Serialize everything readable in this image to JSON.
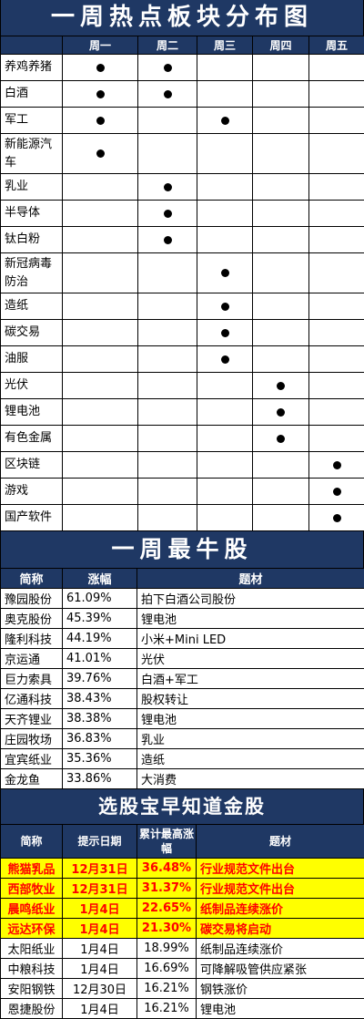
{
  "section1": {
    "title": "一周热点板块分布图",
    "days": [
      "周一",
      "周二",
      "周三",
      "周四",
      "周五"
    ],
    "rows": [
      {
        "sector": "养鸡养猪",
        "marks": [
          true,
          true,
          false,
          false,
          false
        ]
      },
      {
        "sector": "白酒",
        "marks": [
          true,
          true,
          false,
          false,
          false
        ]
      },
      {
        "sector": "军工",
        "marks": [
          true,
          false,
          true,
          false,
          false
        ]
      },
      {
        "sector": "新能源汽车",
        "marks": [
          true,
          false,
          false,
          false,
          false
        ]
      },
      {
        "sector": "乳业",
        "marks": [
          false,
          true,
          false,
          false,
          false
        ]
      },
      {
        "sector": "半导体",
        "marks": [
          false,
          true,
          false,
          false,
          false
        ]
      },
      {
        "sector": "钛白粉",
        "marks": [
          false,
          true,
          false,
          false,
          false
        ]
      },
      {
        "sector": "新冠病毒防治",
        "marks": [
          false,
          false,
          true,
          false,
          false
        ]
      },
      {
        "sector": "造纸",
        "marks": [
          false,
          false,
          true,
          false,
          false
        ]
      },
      {
        "sector": "碳交易",
        "marks": [
          false,
          false,
          true,
          false,
          false
        ]
      },
      {
        "sector": "油服",
        "marks": [
          false,
          false,
          true,
          false,
          false
        ]
      },
      {
        "sector": "光伏",
        "marks": [
          false,
          false,
          false,
          true,
          false
        ]
      },
      {
        "sector": "锂电池",
        "marks": [
          false,
          false,
          false,
          true,
          false
        ]
      },
      {
        "sector": "有色金属",
        "marks": [
          false,
          false,
          false,
          true,
          false
        ]
      },
      {
        "sector": "区块链",
        "marks": [
          false,
          false,
          false,
          false,
          true
        ]
      },
      {
        "sector": "游戏",
        "marks": [
          false,
          false,
          false,
          false,
          true
        ]
      },
      {
        "sector": "国产软件",
        "marks": [
          false,
          false,
          false,
          false,
          true
        ]
      }
    ]
  },
  "section2": {
    "title": "一周最牛股",
    "headers": [
      "简称",
      "涨幅",
      "题材"
    ],
    "rows": [
      [
        "豫园股份",
        "61.09%",
        "拍下白酒公司股份"
      ],
      [
        "奥克股份",
        "45.39%",
        "锂电池"
      ],
      [
        "隆利科技",
        "44.19%",
        "小米+Mini LED"
      ],
      [
        "京运通",
        "41.01%",
        "光伏"
      ],
      [
        "巨力索具",
        "39.76%",
        "白酒+军工"
      ],
      [
        "亿通科技",
        "38.43%",
        "股权转让"
      ],
      [
        "天齐锂业",
        "38.38%",
        "锂电池"
      ],
      [
        "庄园牧场",
        "36.83%",
        "乳业"
      ],
      [
        "宜宾纸业",
        "35.36%",
        "造纸"
      ],
      [
        "金龙鱼",
        "33.86%",
        "大消费"
      ]
    ]
  },
  "section3": {
    "title": "选股宝早知道金股",
    "headers": [
      "简称",
      "提示日期",
      "累计最高涨幅",
      "题材"
    ],
    "highlight_color": "#ffff00",
    "highlight_text_color": "#ff0000",
    "rows": [
      {
        "cells": [
          "熊猫乳品",
          "12月31日",
          "36.48%",
          "行业规范文件出台"
        ],
        "highlight": true
      },
      {
        "cells": [
          "西部牧业",
          "12月31日",
          "31.37%",
          "行业规范文件出台"
        ],
        "highlight": true
      },
      {
        "cells": [
          "晨鸣纸业",
          "1月4日",
          "22.65%",
          "纸制品连续涨价"
        ],
        "highlight": true
      },
      {
        "cells": [
          "远达环保",
          "1月4日",
          "21.30%",
          "碳交易将启动"
        ],
        "highlight": true
      },
      {
        "cells": [
          "太阳纸业",
          "1月4日",
          "18.99%",
          "纸制品连续涨价"
        ],
        "highlight": false
      },
      {
        "cells": [
          "中粮科技",
          "1月4日",
          "16.69%",
          "可降解吸管供应紧张"
        ],
        "highlight": false
      },
      {
        "cells": [
          "安阳钢铁",
          "12月30日",
          "16.21%",
          "钢铁涨价"
        ],
        "highlight": false
      },
      {
        "cells": [
          "恩捷股份",
          "1月4日",
          "16.21%",
          "锂电池"
        ],
        "highlight": false
      }
    ]
  },
  "colors": {
    "header_bg": "#1f3864",
    "header_text": "#ffffff",
    "dot": "#000000"
  }
}
